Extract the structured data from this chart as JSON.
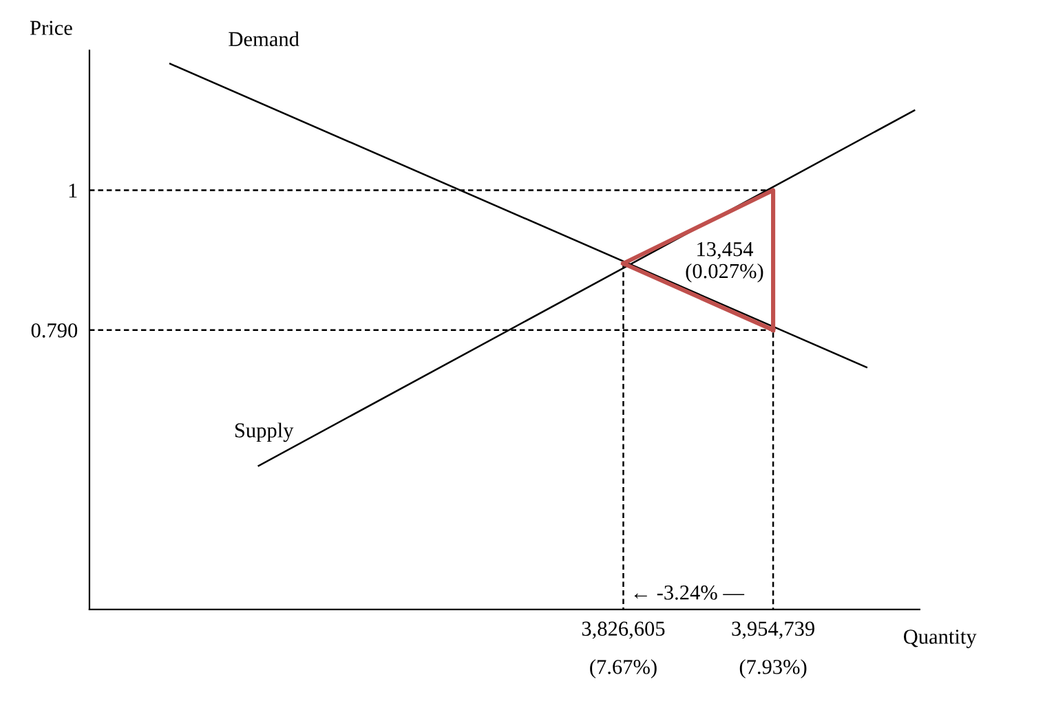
{
  "chart_data": {
    "type": "line",
    "xlabel": "Quantity",
    "ylabel": "Price",
    "xlim": [
      3370000,
      4080000
    ],
    "ylim": [
      0.37,
      1.21
    ],
    "xticks": [
      {
        "value": 3826605,
        "label": "3,826,605"
      },
      {
        "value": 3954739,
        "label": "3,954,739"
      }
    ],
    "yticks": [
      1,
      {
        "value": 0.79,
        "label": "0.790"
      }
    ],
    "grid": false,
    "legend": false,
    "marker": "none",
    "series": [
      {
        "color": "#000000",
        "x": [
          3439000,
          4034600
        ],
        "values": [
          1.19,
          0.734
        ],
        "line_style": "solid"
      },
      {
        "color": "#000000",
        "x": [
          3514700,
          4075500
        ],
        "values": [
          0.586,
          1.12
        ],
        "line_style": "solid"
      },
      {
        "color": "#000000",
        "x": [
          3370000,
          3954739,
          3954739
        ],
        "values": [
          1,
          1,
          0.37
        ],
        "line_style": "dashed"
      },
      {
        "color": "#000000",
        "x": [
          3370000,
          3954739
        ],
        "values": [
          0.79,
          0.79
        ],
        "line_style": "dashed"
      },
      {
        "color": "#000000",
        "x": [
          3826605,
          3826605
        ],
        "values": [
          0.89,
          0.37
        ],
        "line_style": "dashed"
      },
      {
        "color": "#c0504d",
        "x": [
          3826605,
          3954739,
          3954739
        ],
        "values": [
          0.89,
          1,
          0.79
        ],
        "line_style": "solid"
      },
      {
        "color": "#c0504d",
        "x": [
          3826605,
          3954739
        ],
        "values": [
          0.89,
          0.79
        ],
        "line_style": "solid"
      }
    ],
    "annotations": [
      "Demand",
      "Supply",
      "13,454\n(0.027%)",
      "← -3.24% —",
      {
        "text": "(7.67%)",
        "x": 3826605,
        "y": 0.37
      },
      {
        "text": "(7.93%)",
        "x": 3954739,
        "y": 0.37
      }
    ]
  }
}
